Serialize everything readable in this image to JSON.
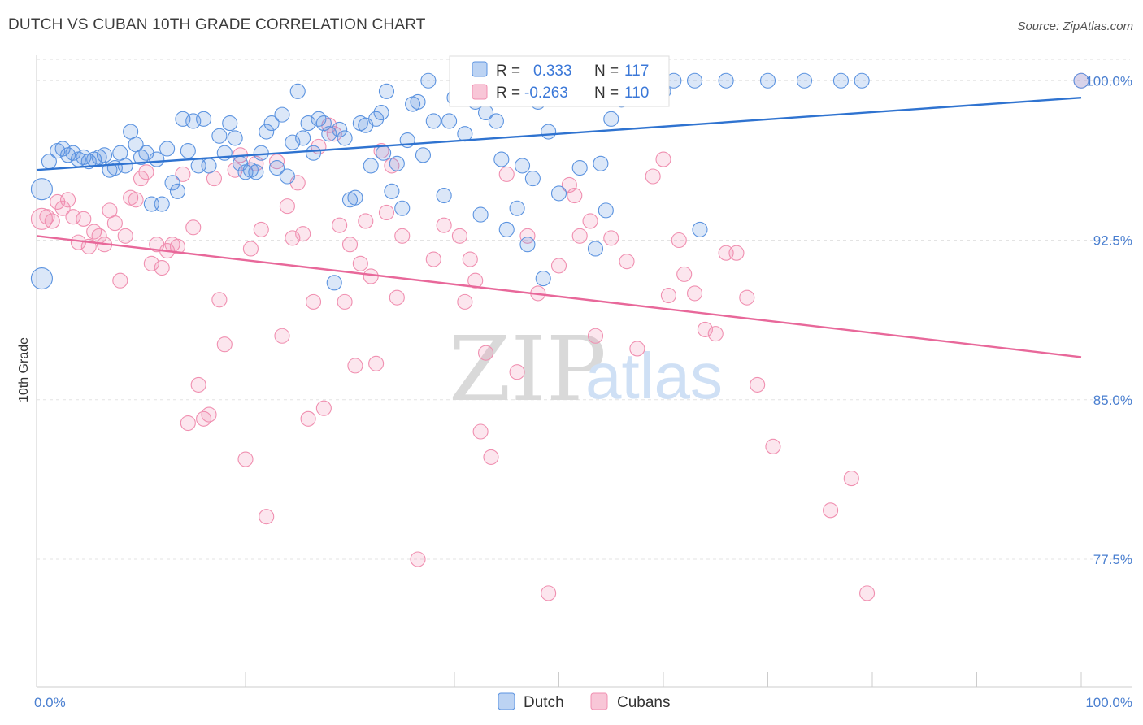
{
  "title": "DUTCH VS CUBAN 10TH GRADE CORRELATION CHART",
  "source": "Source: ZipAtlas.com",
  "watermark": {
    "zip": "ZIP",
    "atlas": "atlas"
  },
  "colors": {
    "dutch": "#5b93e0",
    "cubans": "#f08fb0",
    "dutch_line": "#2f73d0",
    "cubans_line": "#e8689a"
  },
  "legend_box": {
    "dutch": {
      "r_label": "R =",
      "r_value": "0.333",
      "n_label": "N =",
      "n_value": "117"
    },
    "cubans": {
      "r_label": "R =",
      "r_value": "-0.263",
      "n_label": "N =",
      "n_value": "110"
    }
  },
  "bottom_legend": {
    "dutch": "Dutch",
    "cubans": "Cubans"
  },
  "chart_data": {
    "type": "scatter",
    "ylabel": "10th Grade",
    "xlim": [
      0,
      100
    ],
    "ylim": [
      71.5,
      101.5
    ],
    "y_ticks": [
      {
        "value": 100,
        "label": "100.0%"
      },
      {
        "value": 92.5,
        "label": "92.5%"
      },
      {
        "value": 85,
        "label": "85.0%"
      },
      {
        "value": 77.5,
        "label": "77.5%"
      }
    ],
    "x_tick_labels": [
      {
        "value": 0,
        "label": "0.0%"
      },
      {
        "value": 100,
        "label": "100.0%"
      }
    ],
    "x_minor_ticks": [
      0,
      10,
      20,
      30,
      40,
      50,
      60,
      70,
      80,
      90,
      100
    ],
    "grid": true,
    "series": [
      {
        "name": "Dutch",
        "trend": [
          [
            0,
            95.8
          ],
          [
            100,
            99.2
          ]
        ],
        "points": [
          [
            0.5,
            94.9
          ],
          [
            0.5,
            90.7
          ],
          [
            1.2,
            96.2
          ],
          [
            2.0,
            96.7
          ],
          [
            2.5,
            96.8
          ],
          [
            3.0,
            96.5
          ],
          [
            3.5,
            96.6
          ],
          [
            4.0,
            96.3
          ],
          [
            4.5,
            96.4
          ],
          [
            5.0,
            96.2
          ],
          [
            5.5,
            96.3
          ],
          [
            6.0,
            96.4
          ],
          [
            6.5,
            96.5
          ],
          [
            7.0,
            95.8
          ],
          [
            7.5,
            95.9
          ],
          [
            8.0,
            96.6
          ],
          [
            8.5,
            96.0
          ],
          [
            9.0,
            97.6
          ],
          [
            9.5,
            97.0
          ],
          [
            10.0,
            96.4
          ],
          [
            10.5,
            96.6
          ],
          [
            11.0,
            94.2
          ],
          [
            11.5,
            96.3
          ],
          [
            12.0,
            94.2
          ],
          [
            12.5,
            96.8
          ],
          [
            13.0,
            95.2
          ],
          [
            13.5,
            94.8
          ],
          [
            14.0,
            98.2
          ],
          [
            14.5,
            96.7
          ],
          [
            15.0,
            98.1
          ],
          [
            15.5,
            96.0
          ],
          [
            16.0,
            98.2
          ],
          [
            16.5,
            96.0
          ],
          [
            17.5,
            97.4
          ],
          [
            18.0,
            96.6
          ],
          [
            18.5,
            98.0
          ],
          [
            19.0,
            97.3
          ],
          [
            19.5,
            96.1
          ],
          [
            20.0,
            95.7
          ],
          [
            20.5,
            95.8
          ],
          [
            21.0,
            95.7
          ],
          [
            21.5,
            96.6
          ],
          [
            22.0,
            97.6
          ],
          [
            22.5,
            98.0
          ],
          [
            23.0,
            95.9
          ],
          [
            23.5,
            98.4
          ],
          [
            24.0,
            95.5
          ],
          [
            24.5,
            97.1
          ],
          [
            25.0,
            99.5
          ],
          [
            25.5,
            97.3
          ],
          [
            26.0,
            98.0
          ],
          [
            26.5,
            96.6
          ],
          [
            27.0,
            98.2
          ],
          [
            27.5,
            98.0
          ],
          [
            28.0,
            97.5
          ],
          [
            28.5,
            90.5
          ],
          [
            29.0,
            97.7
          ],
          [
            29.5,
            97.3
          ],
          [
            30.0,
            94.4
          ],
          [
            30.5,
            94.5
          ],
          [
            31.0,
            98.0
          ],
          [
            31.5,
            97.9
          ],
          [
            32.0,
            96.0
          ],
          [
            32.5,
            98.2
          ],
          [
            33.0,
            98.5
          ],
          [
            33.5,
            99.5
          ],
          [
            34.0,
            94.8
          ],
          [
            34.5,
            96.1
          ],
          [
            35.0,
            94.0
          ],
          [
            35.5,
            97.2
          ],
          [
            36.0,
            98.9
          ],
          [
            36.5,
            99.0
          ],
          [
            37.0,
            96.5
          ],
          [
            37.5,
            100.0
          ],
          [
            38.0,
            98.1
          ],
          [
            39.0,
            94.6
          ],
          [
            39.5,
            98.1
          ],
          [
            40.0,
            99.2
          ],
          [
            40.5,
            99.4
          ],
          [
            41.0,
            97.5
          ],
          [
            42.0,
            99.0
          ],
          [
            42.5,
            93.7
          ],
          [
            43.0,
            98.5
          ],
          [
            44.0,
            98.1
          ],
          [
            44.5,
            96.3
          ],
          [
            45.0,
            93.0
          ],
          [
            45.5,
            100.0
          ],
          [
            46.0,
            94.0
          ],
          [
            46.5,
            96.0
          ],
          [
            47.0,
            92.3
          ],
          [
            47.5,
            95.4
          ],
          [
            48.0,
            99.0
          ],
          [
            48.5,
            90.7
          ],
          [
            49.0,
            97.6
          ],
          [
            50.0,
            94.7
          ],
          [
            52.0,
            95.9
          ],
          [
            53.5,
            92.1
          ],
          [
            54.0,
            96.1
          ],
          [
            54.5,
            93.9
          ],
          [
            55.0,
            98.2
          ],
          [
            56.0,
            99.1
          ],
          [
            58.0,
            100.0
          ],
          [
            60.0,
            99.5
          ],
          [
            61.0,
            100.0
          ],
          [
            63.0,
            100.0
          ],
          [
            63.5,
            93.0
          ],
          [
            66.0,
            100.0
          ],
          [
            70.0,
            100.0
          ],
          [
            73.5,
            100.0
          ],
          [
            77.0,
            100.0
          ],
          [
            79.0,
            100.0
          ],
          [
            100.0,
            100.0
          ],
          [
            33.2,
            96.6
          ],
          [
            40.8,
            99.8
          ]
        ]
      },
      {
        "name": "Cubans",
        "trend": [
          [
            0,
            92.7
          ],
          [
            100,
            87.0
          ]
        ],
        "points": [
          [
            0.5,
            93.5
          ],
          [
            1.0,
            93.6
          ],
          [
            1.5,
            93.4
          ],
          [
            2.0,
            94.3
          ],
          [
            2.5,
            94.0
          ],
          [
            3.0,
            94.4
          ],
          [
            3.5,
            93.6
          ],
          [
            4.0,
            92.4
          ],
          [
            4.5,
            93.5
          ],
          [
            5.0,
            92.2
          ],
          [
            5.5,
            92.9
          ],
          [
            6.0,
            92.7
          ],
          [
            6.5,
            92.3
          ],
          [
            7.0,
            93.9
          ],
          [
            7.5,
            93.3
          ],
          [
            8.0,
            90.6
          ],
          [
            8.5,
            92.7
          ],
          [
            9.0,
            94.5
          ],
          [
            9.5,
            94.4
          ],
          [
            10.0,
            95.4
          ],
          [
            10.5,
            95.7
          ],
          [
            11.0,
            91.4
          ],
          [
            11.5,
            92.3
          ],
          [
            12.0,
            91.2
          ],
          [
            12.5,
            92.0
          ],
          [
            13.0,
            92.3
          ],
          [
            13.5,
            92.2
          ],
          [
            14.0,
            95.6
          ],
          [
            14.5,
            83.9
          ],
          [
            15.0,
            93.1
          ],
          [
            15.5,
            85.7
          ],
          [
            16.0,
            84.1
          ],
          [
            16.5,
            84.3
          ],
          [
            17.0,
            95.4
          ],
          [
            17.5,
            89.7
          ],
          [
            18.0,
            87.6
          ],
          [
            19.0,
            95.8
          ],
          [
            19.5,
            96.5
          ],
          [
            20.0,
            82.2
          ],
          [
            20.5,
            92.1
          ],
          [
            21.0,
            96.1
          ],
          [
            21.5,
            93.0
          ],
          [
            22.0,
            79.5
          ],
          [
            23.0,
            96.2
          ],
          [
            23.5,
            88.0
          ],
          [
            24.0,
            94.1
          ],
          [
            24.5,
            92.6
          ],
          [
            25.0,
            95.2
          ],
          [
            25.5,
            92.8
          ],
          [
            26.0,
            84.1
          ],
          [
            26.5,
            89.6
          ],
          [
            27.0,
            96.9
          ],
          [
            27.5,
            84.6
          ],
          [
            28.0,
            97.9
          ],
          [
            28.5,
            97.5
          ],
          [
            29.0,
            93.2
          ],
          [
            29.5,
            89.6
          ],
          [
            30.0,
            92.3
          ],
          [
            30.5,
            86.6
          ],
          [
            31.0,
            91.4
          ],
          [
            31.5,
            93.4
          ],
          [
            32.0,
            90.8
          ],
          [
            32.5,
            86.7
          ],
          [
            33.0,
            96.7
          ],
          [
            33.5,
            93.8
          ],
          [
            34.0,
            96.0
          ],
          [
            34.5,
            89.8
          ],
          [
            35.0,
            92.7
          ],
          [
            36.5,
            77.5
          ],
          [
            38.0,
            91.6
          ],
          [
            39.0,
            93.2
          ],
          [
            40.5,
            92.7
          ],
          [
            41.0,
            89.6
          ],
          [
            41.5,
            91.6
          ],
          [
            42.0,
            90.6
          ],
          [
            42.5,
            83.5
          ],
          [
            43.0,
            87.2
          ],
          [
            43.5,
            82.3
          ],
          [
            45.0,
            95.6
          ],
          [
            46.0,
            86.3
          ],
          [
            47.0,
            92.7
          ],
          [
            48.0,
            90.0
          ],
          [
            49.0,
            75.9
          ],
          [
            50.0,
            91.3
          ],
          [
            51.0,
            95.1
          ],
          [
            51.5,
            94.6
          ],
          [
            52.0,
            92.7
          ],
          [
            53.0,
            93.4
          ],
          [
            53.5,
            88.0
          ],
          [
            55.0,
            92.6
          ],
          [
            56.5,
            91.5
          ],
          [
            57.5,
            87.4
          ],
          [
            59.0,
            95.5
          ],
          [
            60.0,
            96.3
          ],
          [
            60.5,
            89.9
          ],
          [
            61.5,
            92.5
          ],
          [
            62.0,
            90.9
          ],
          [
            63.0,
            90.0
          ],
          [
            64.0,
            88.3
          ],
          [
            65.0,
            88.1
          ],
          [
            66.0,
            91.9
          ],
          [
            67.0,
            91.9
          ],
          [
            68.0,
            89.8
          ],
          [
            69.0,
            85.7
          ],
          [
            70.5,
            82.8
          ],
          [
            76.0,
            79.8
          ],
          [
            78.0,
            81.3
          ],
          [
            79.5,
            75.9
          ],
          [
            100.0,
            100.0
          ]
        ]
      }
    ]
  }
}
